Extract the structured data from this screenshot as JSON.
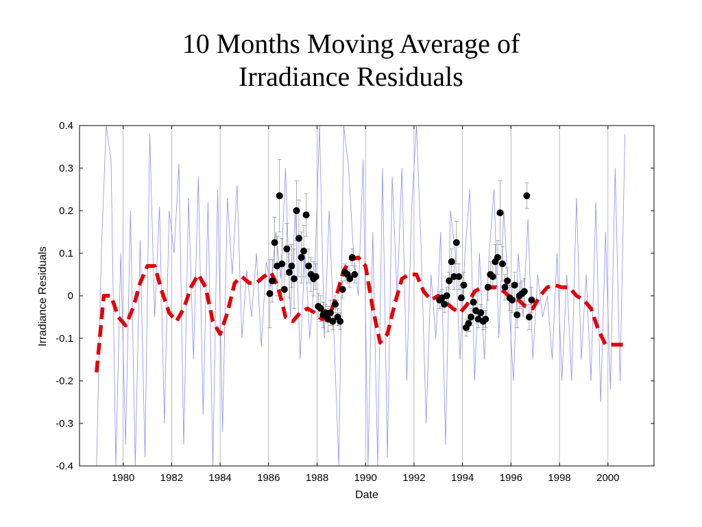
{
  "chart_data": {
    "type": "line",
    "title_lines": [
      "10 Months Moving Average of",
      "Irradiance Residuals"
    ],
    "xlabel": "Date",
    "ylabel": "Irradiance Residuals",
    "xlim": [
      1978.2,
      2001.9
    ],
    "ylim": [
      -0.4,
      0.4
    ],
    "x_ticks": [
      1980,
      1982,
      1984,
      1986,
      1988,
      1990,
      1992,
      1994,
      1996,
      1998,
      2000
    ],
    "y_ticks": [
      -0.4,
      -0.3,
      -0.2,
      -0.1,
      0,
      0.1,
      0.2,
      0.3,
      0.4
    ],
    "y_tick_labels": [
      "-0.4",
      "-0.3",
      "-0.2",
      "-0.1",
      "0",
      "0.1",
      "0.2",
      "0.3",
      "0.4"
    ],
    "grid": "vertical lines at even years",
    "series": [
      {
        "style": "thin-blue-line",
        "color": "#8c8cff",
        "x": [
          1978.9,
          1979.1,
          1979.3,
          1979.5,
          1979.7,
          1979.9,
          1980.1,
          1980.3,
          1980.5,
          1980.7,
          1980.9,
          1981.1,
          1981.3,
          1981.5,
          1981.7,
          1981.9,
          1982.1,
          1982.3,
          1982.5,
          1982.7,
          1982.9,
          1983.1,
          1983.3,
          1983.5,
          1983.7,
          1983.9,
          1984.1,
          1984.3,
          1984.5,
          1984.7,
          1984.9,
          1985.1,
          1985.3,
          1985.5,
          1985.7,
          1985.9,
          1986.1,
          1986.3,
          1986.5,
          1986.7,
          1986.9,
          1987.1,
          1987.3,
          1987.5,
          1987.7,
          1987.9,
          1988.1,
          1988.3,
          1988.5,
          1988.7,
          1988.9,
          1989.1,
          1989.3,
          1989.5,
          1989.7,
          1989.9,
          1990.1,
          1990.3,
          1990.5,
          1990.7,
          1990.9,
          1991.1,
          1991.3,
          1991.5,
          1991.7,
          1991.9,
          1992.1,
          1992.3,
          1992.5,
          1992.7,
          1992.9,
          1993.1,
          1993.3,
          1993.5,
          1993.7,
          1993.9,
          1994.1,
          1994.3,
          1994.5,
          1994.7,
          1994.9,
          1995.1,
          1995.3,
          1995.5,
          1995.7,
          1995.9,
          1996.1,
          1996.3,
          1996.5,
          1996.7,
          1996.9,
          1997.1,
          1997.3,
          1997.5,
          1997.7,
          1997.9,
          1998.1,
          1998.3,
          1998.5,
          1998.7,
          1998.9,
          1999.1,
          1999.3,
          1999.5,
          1999.7,
          1999.9,
          2000.1,
          2000.3,
          2000.5,
          2000.7
        ],
        "values": [
          -0.4,
          0.1,
          0.4,
          0.32,
          -0.4,
          0.1,
          -0.35,
          0.2,
          -0.4,
          0.13,
          -0.38,
          0.38,
          -0.05,
          0.21,
          -0.3,
          0.2,
          0.1,
          0.31,
          -0.35,
          0.23,
          -0.15,
          0.28,
          -0.28,
          0.22,
          -0.4,
          0.25,
          -0.32,
          0.23,
          0.05,
          0.26,
          -0.1,
          0.06,
          -0.05,
          0.1,
          -0.12,
          0.08,
          0.02,
          0.15,
          0.04,
          0.3,
          -0.05,
          0.2,
          -0.15,
          0.1,
          -0.1,
          0.05,
          0.4,
          -0.1,
          0.2,
          -0.1,
          -0.4,
          0.4,
          0.3,
          0.1,
          0.0,
          0.32,
          -0.4,
          0.15,
          -0.4,
          0.3,
          -0.38,
          0.28,
          0.0,
          0.3,
          -0.2,
          0.2,
          0.4,
          0.1,
          -0.3,
          0.05,
          -0.1,
          0.15,
          -0.35,
          0.2,
          0.1,
          -0.15,
          0.1,
          0.25,
          -0.2,
          0.1,
          -0.15,
          0.1,
          0.25,
          -0.1,
          0.2,
          0.0,
          -0.2,
          0.1,
          -0.05,
          0.18,
          -0.15,
          0.05,
          -0.05,
          0.0,
          -0.15,
          0.1,
          -0.2,
          0.05,
          -0.2,
          0.23,
          -0.15,
          0.05,
          -0.2,
          0.22,
          -0.25,
          0.15,
          -0.22,
          0.3,
          -0.2,
          0.38
        ]
      },
      {
        "style": "thick-red-dashed",
        "color": "#e30000",
        "x": [
          1978.9,
          1979.2,
          1979.5,
          1979.8,
          1980.1,
          1980.4,
          1980.7,
          1981.0,
          1981.3,
          1981.6,
          1981.9,
          1982.2,
          1982.5,
          1982.8,
          1983.1,
          1983.4,
          1983.7,
          1984.0,
          1984.3,
          1984.6,
          1984.9,
          1985.2,
          1985.5,
          1985.8,
          1986.1,
          1986.4,
          1986.7,
          1987.0,
          1987.3,
          1987.6,
          1987.9,
          1988.2,
          1988.5,
          1988.8,
          1989.1,
          1989.4,
          1989.7,
          1990.0,
          1990.3,
          1990.6,
          1990.9,
          1991.2,
          1991.5,
          1991.8,
          1992.1,
          1992.4,
          1992.7,
          1993.0,
          1993.3,
          1993.6,
          1993.9,
          1994.2,
          1994.5,
          1994.8,
          1995.1,
          1995.4,
          1995.7,
          1996.0,
          1996.3,
          1996.6,
          1996.9,
          1997.2,
          1997.5,
          1997.8,
          1998.1,
          1998.4,
          1998.7,
          1999.0,
          1999.3,
          1999.6,
          1999.9,
          2000.2,
          2000.5,
          2000.8
        ],
        "values": [
          -0.18,
          0.0,
          0.0,
          -0.05,
          -0.07,
          -0.03,
          0.03,
          0.07,
          0.07,
          0.01,
          -0.04,
          -0.06,
          -0.03,
          0.02,
          0.05,
          0.02,
          -0.06,
          -0.09,
          -0.04,
          0.03,
          0.045,
          0.03,
          0.03,
          0.045,
          0.055,
          0.02,
          -0.05,
          -0.06,
          -0.04,
          -0.03,
          -0.04,
          -0.055,
          -0.05,
          0.0,
          0.06,
          0.085,
          0.09,
          0.07,
          -0.03,
          -0.11,
          -0.09,
          -0.02,
          0.04,
          0.05,
          0.05,
          0.01,
          -0.01,
          0.0,
          -0.015,
          -0.03,
          -0.04,
          -0.02,
          0.01,
          0.02,
          0.02,
          0.02,
          0.01,
          -0.005,
          -0.01,
          -0.025,
          -0.03,
          0.0,
          0.02,
          0.025,
          0.02,
          0.02,
          0.0,
          -0.01,
          -0.03,
          -0.08,
          -0.115,
          -0.115,
          -0.115,
          -0.115
        ]
      },
      {
        "style": "black-dots-with-errorbars",
        "color": "#000000",
        "x": [
          1986.05,
          1986.15,
          1986.25,
          1986.35,
          1986.45,
          1986.55,
          1986.65,
          1986.75,
          1986.85,
          1986.95,
          1987.05,
          1987.15,
          1987.25,
          1987.35,
          1987.45,
          1987.55,
          1987.65,
          1987.75,
          1987.85,
          1987.95,
          1988.05,
          1988.15,
          1988.25,
          1988.35,
          1988.45,
          1988.55,
          1988.65,
          1988.75,
          1988.85,
          1988.95,
          1989.05,
          1989.15,
          1989.25,
          1989.35,
          1989.45,
          1989.55,
          1993.05,
          1993.15,
          1993.25,
          1993.35,
          1993.45,
          1993.55,
          1993.65,
          1993.75,
          1993.85,
          1993.95,
          1994.05,
          1994.15,
          1994.25,
          1994.35,
          1994.45,
          1994.55,
          1994.65,
          1994.75,
          1994.85,
          1994.95,
          1995.05,
          1995.15,
          1995.25,
          1995.35,
          1995.45,
          1995.55,
          1995.65,
          1995.75,
          1995.85,
          1995.95,
          1996.05,
          1996.15,
          1996.25,
          1996.35,
          1996.45,
          1996.55,
          1996.65,
          1996.75,
          1996.85
        ],
        "values": [
          0.005,
          0.035,
          0.125,
          0.07,
          0.235,
          0.075,
          0.015,
          0.11,
          0.055,
          0.07,
          0.04,
          0.2,
          0.135,
          0.09,
          0.105,
          0.19,
          0.07,
          0.05,
          0.04,
          0.045,
          -0.025,
          -0.03,
          -0.045,
          -0.04,
          -0.055,
          -0.04,
          -0.06,
          -0.02,
          -0.05,
          -0.06,
          0.015,
          0.055,
          0.05,
          0.04,
          0.09,
          0.05,
          -0.01,
          -0.005,
          -0.02,
          0.0,
          0.035,
          0.08,
          0.045,
          0.125,
          0.045,
          -0.005,
          0.025,
          -0.075,
          -0.065,
          -0.05,
          -0.015,
          -0.035,
          -0.055,
          -0.04,
          -0.06,
          -0.055,
          0.02,
          0.05,
          0.045,
          0.08,
          0.09,
          0.195,
          0.075,
          0.02,
          0.035,
          -0.005,
          -0.01,
          0.025,
          -0.045,
          0.0,
          0.005,
          0.01,
          0.235,
          -0.05,
          -0.01
        ],
        "errors": [
          0.08,
          0.05,
          0.06,
          0.07,
          0.085,
          0.06,
          0.06,
          0.06,
          0.06,
          0.05,
          0.07,
          0.07,
          0.09,
          0.06,
          0.06,
          0.05,
          0.04,
          0.04,
          0.04,
          0.03,
          0.03,
          0.03,
          0.03,
          0.02,
          0.03,
          0.03,
          0.02,
          0.02,
          0.02,
          0.02,
          0.02,
          0.02,
          0.02,
          0.02,
          0.02,
          0.02,
          0.02,
          0.02,
          0.02,
          0.02,
          0.02,
          0.03,
          0.03,
          0.05,
          0.03,
          0.03,
          0.03,
          0.02,
          0.02,
          0.02,
          0.02,
          0.02,
          0.02,
          0.02,
          0.02,
          0.02,
          0.03,
          0.03,
          0.03,
          0.04,
          0.04,
          0.075,
          0.04,
          0.03,
          0.03,
          0.03,
          0.03,
          0.03,
          0.03,
          0.03,
          0.03,
          0.03,
          0.03,
          0.03,
          0.03
        ]
      }
    ]
  }
}
